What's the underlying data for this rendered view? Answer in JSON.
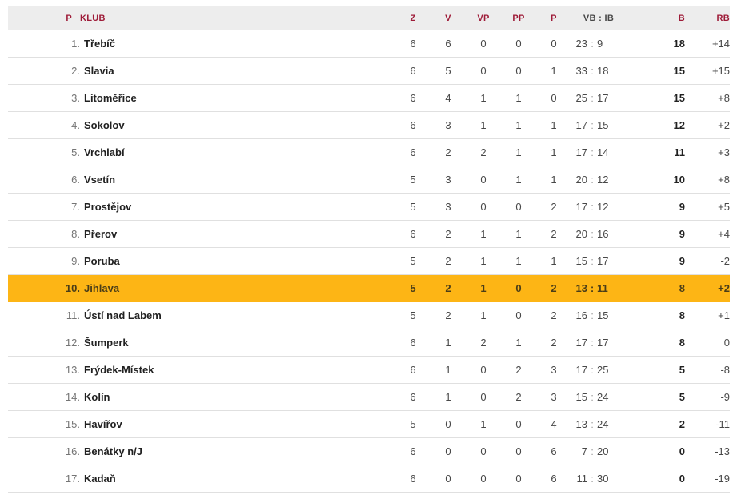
{
  "colors": {
    "header_bg": "#ededed",
    "header_text": "#9e1b38",
    "row_border": "#e0e0e0",
    "highlight_bg": "#fdb515",
    "highlight_text": "#4a3d18",
    "pos_text": "#757575",
    "club_text": "#212121",
    "value_text": "#484848",
    "points_text": "#212121",
    "colon_text": "#9e9e9e"
  },
  "header": {
    "pos": "P",
    "club": "KLUB",
    "games": "Z",
    "wins": "V",
    "ot_wins": "VP",
    "ot_losses": "PP",
    "losses": "P",
    "score": "VB : IB",
    "score_sep": ":",
    "points": "B",
    "diff": "RB"
  },
  "rows": [
    {
      "pos": "1.",
      "club": "Třebíč",
      "z": "6",
      "v": "6",
      "vp": "0",
      "pp": "0",
      "p": "0",
      "vb": "23",
      "ib": "9",
      "b": "18",
      "rb": "+14",
      "highlighted": false
    },
    {
      "pos": "2.",
      "club": "Slavia",
      "z": "6",
      "v": "5",
      "vp": "0",
      "pp": "0",
      "p": "1",
      "vb": "33",
      "ib": "18",
      "b": "15",
      "rb": "+15",
      "highlighted": false
    },
    {
      "pos": "3.",
      "club": "Litoměřice",
      "z": "6",
      "v": "4",
      "vp": "1",
      "pp": "1",
      "p": "0",
      "vb": "25",
      "ib": "17",
      "b": "15",
      "rb": "+8",
      "highlighted": false
    },
    {
      "pos": "4.",
      "club": "Sokolov",
      "z": "6",
      "v": "3",
      "vp": "1",
      "pp": "1",
      "p": "1",
      "vb": "17",
      "ib": "15",
      "b": "12",
      "rb": "+2",
      "highlighted": false
    },
    {
      "pos": "5.",
      "club": "Vrchlabí",
      "z": "6",
      "v": "2",
      "vp": "2",
      "pp": "1",
      "p": "1",
      "vb": "17",
      "ib": "14",
      "b": "11",
      "rb": "+3",
      "highlighted": false
    },
    {
      "pos": "6.",
      "club": "Vsetín",
      "z": "5",
      "v": "3",
      "vp": "0",
      "pp": "1",
      "p": "1",
      "vb": "20",
      "ib": "12",
      "b": "10",
      "rb": "+8",
      "highlighted": false
    },
    {
      "pos": "7.",
      "club": "Prostějov",
      "z": "5",
      "v": "3",
      "vp": "0",
      "pp": "0",
      "p": "2",
      "vb": "17",
      "ib": "12",
      "b": "9",
      "rb": "+5",
      "highlighted": false
    },
    {
      "pos": "8.",
      "club": "Přerov",
      "z": "6",
      "v": "2",
      "vp": "1",
      "pp": "1",
      "p": "2",
      "vb": "20",
      "ib": "16",
      "b": "9",
      "rb": "+4",
      "highlighted": false
    },
    {
      "pos": "9.",
      "club": "Poruba",
      "z": "5",
      "v": "2",
      "vp": "1",
      "pp": "1",
      "p": "1",
      "vb": "15",
      "ib": "17",
      "b": "9",
      "rb": "-2",
      "highlighted": false
    },
    {
      "pos": "10.",
      "club": "Jihlava",
      "z": "5",
      "v": "2",
      "vp": "1",
      "pp": "0",
      "p": "2",
      "vb": "13",
      "ib": "11",
      "b": "8",
      "rb": "+2",
      "highlighted": true
    },
    {
      "pos": "11.",
      "club": "Ústí nad Labem",
      "z": "5",
      "v": "2",
      "vp": "1",
      "pp": "0",
      "p": "2",
      "vb": "16",
      "ib": "15",
      "b": "8",
      "rb": "+1",
      "highlighted": false
    },
    {
      "pos": "12.",
      "club": "Šumperk",
      "z": "6",
      "v": "1",
      "vp": "2",
      "pp": "1",
      "p": "2",
      "vb": "17",
      "ib": "17",
      "b": "8",
      "rb": "0",
      "highlighted": false
    },
    {
      "pos": "13.",
      "club": "Frýdek-Místek",
      "z": "6",
      "v": "1",
      "vp": "0",
      "pp": "2",
      "p": "3",
      "vb": "17",
      "ib": "25",
      "b": "5",
      "rb": "-8",
      "highlighted": false
    },
    {
      "pos": "14.",
      "club": "Kolín",
      "z": "6",
      "v": "1",
      "vp": "0",
      "pp": "2",
      "p": "3",
      "vb": "15",
      "ib": "24",
      "b": "5",
      "rb": "-9",
      "highlighted": false
    },
    {
      "pos": "15.",
      "club": "Havířov",
      "z": "5",
      "v": "0",
      "vp": "1",
      "pp": "0",
      "p": "4",
      "vb": "13",
      "ib": "24",
      "b": "2",
      "rb": "-11",
      "highlighted": false
    },
    {
      "pos": "16.",
      "club": "Benátky n/J",
      "z": "6",
      "v": "0",
      "vp": "0",
      "pp": "0",
      "p": "6",
      "vb": "7",
      "ib": "20",
      "b": "0",
      "rb": "-13",
      "highlighted": false
    },
    {
      "pos": "17.",
      "club": "Kadaň",
      "z": "6",
      "v": "0",
      "vp": "0",
      "pp": "0",
      "p": "6",
      "vb": "11",
      "ib": "30",
      "b": "0",
      "rb": "-19",
      "highlighted": false
    }
  ]
}
